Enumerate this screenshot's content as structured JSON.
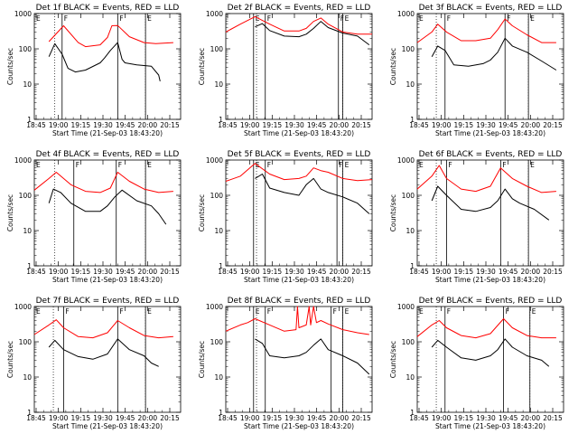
{
  "chart_data": [
    {
      "type": "line",
      "title": "Det 1f BLACK = Events, RED = LLD",
      "xlabel": "Start Time (21-Sep-03 18:43:20)",
      "ylabel": "Counts/sec",
      "x_ticks": [
        "18:45",
        "19:00",
        "19:15",
        "19:30",
        "19:45",
        "20:00",
        "20:15"
      ],
      "y_ticks": [
        "1",
        "10",
        "100",
        "1000"
      ],
      "ylim": [
        1,
        1000
      ],
      "yscale": "log",
      "flags": [
        {
          "label": "E",
          "t": 0
        },
        {
          "label": "F",
          "t": 0.19
        },
        {
          "label": "F",
          "t": 0.57
        },
        {
          "label": "E",
          "t": 0.76
        }
      ],
      "dotted": [
        0.14,
        0.76
      ],
      "series": [
        {
          "name": "LLD",
          "color": "#ff0000",
          "x": [
            0.1,
            0.2,
            0.3,
            0.35,
            0.45,
            0.5,
            0.53,
            0.57,
            0.65,
            0.75,
            0.83,
            0.95
          ],
          "y": [
            160,
            450,
            150,
            115,
            130,
            210,
            450,
            460,
            220,
            150,
            140,
            150
          ]
        },
        {
          "name": "Events",
          "color": "#000000",
          "x": [
            0.1,
            0.14,
            0.19,
            0.23,
            0.28,
            0.35,
            0.45,
            0.48,
            0.52,
            0.57,
            0.6,
            0.62,
            0.7,
            0.8,
            0.85,
            0.86
          ],
          "y": [
            60,
            140,
            70,
            28,
            22,
            25,
            40,
            55,
            90,
            150,
            50,
            40,
            35,
            32,
            18,
            12
          ]
        }
      ]
    },
    {
      "type": "line",
      "title": "Det 2f BLACK = Events, RED = LLD",
      "xlabel": "Start Time (21-Sep-03 18:43:20)",
      "ylabel": "Counts/sec",
      "x_ticks": [
        "18:45",
        "19:00",
        "19:15",
        "19:30",
        "19:45",
        "20:00",
        "20:15"
      ],
      "y_ticks": [
        "1",
        "10",
        "100",
        "1000"
      ],
      "ylim": [
        1,
        1000
      ],
      "yscale": "log",
      "flags": [
        {
          "label": "E",
          "t": 0.19
        },
        {
          "label": "F",
          "t": 0.27
        },
        {
          "label": "F",
          "t": 0.77
        },
        {
          "label": "E",
          "t": 0.8
        }
      ],
      "dotted": [
        0.21,
        0.8
      ],
      "series": [
        {
          "name": "LLD",
          "color": "#ff0000",
          "x": [
            0.0,
            0.1,
            0.2,
            0.3,
            0.4,
            0.5,
            0.55,
            0.6,
            0.65,
            0.7,
            0.8,
            0.9,
            1.0
          ],
          "y": [
            300,
            500,
            820,
            500,
            320,
            320,
            380,
            600,
            750,
            500,
            300,
            260,
            260
          ]
        },
        {
          "name": "Events",
          "color": "#000000",
          "x": [
            0.2,
            0.25,
            0.3,
            0.4,
            0.5,
            0.55,
            0.6,
            0.65,
            0.7,
            0.8,
            0.9,
            0.98
          ],
          "y": [
            420,
            520,
            330,
            230,
            220,
            260,
            380,
            600,
            400,
            280,
            230,
            130
          ]
        }
      ]
    },
    {
      "type": "line",
      "title": "Det 3f BLACK = Events, RED = LLD",
      "xlabel": "Start Time (21-Sep-03 18:43:20)",
      "ylabel": "Counts/sec",
      "x_ticks": [
        "18:45",
        "19:00",
        "19:15",
        "19:30",
        "19:45",
        "20:00",
        "20:15"
      ],
      "y_ticks": [
        "1",
        "10",
        "100",
        "1000"
      ],
      "ylim": [
        1,
        1000
      ],
      "yscale": "log",
      "flags": [
        {
          "label": "E",
          "t": 0
        },
        {
          "label": "F",
          "t": 0.19
        },
        {
          "label": "F",
          "t": 0.6
        },
        {
          "label": "E",
          "t": 0.76
        }
      ],
      "dotted": [
        0.13,
        0.76
      ],
      "series": [
        {
          "name": "LLD",
          "color": "#ff0000",
          "x": [
            0.0,
            0.1,
            0.14,
            0.2,
            0.3,
            0.4,
            0.5,
            0.55,
            0.6,
            0.65,
            0.75,
            0.85,
            0.95
          ],
          "y": [
            150,
            300,
            500,
            300,
            170,
            170,
            200,
            350,
            700,
            450,
            250,
            150,
            150
          ]
        },
        {
          "name": "Events",
          "color": "#000000",
          "x": [
            0.1,
            0.14,
            0.19,
            0.25,
            0.35,
            0.45,
            0.5,
            0.55,
            0.6,
            0.65,
            0.75,
            0.85,
            0.95
          ],
          "y": [
            60,
            120,
            90,
            35,
            32,
            38,
            48,
            80,
            200,
            120,
            80,
            45,
            25
          ]
        }
      ]
    },
    {
      "type": "line",
      "title": "Det 4f BLACK = Events, RED = LLD",
      "xlabel": "Start Time (21-Sep-03 18:43:20)",
      "ylabel": "Counts/sec",
      "x_ticks": [
        "18:45",
        "19:00",
        "19:15",
        "19:30",
        "19:45",
        "20:00",
        "20:15"
      ],
      "y_ticks": [
        "1",
        "10",
        "100",
        "1000"
      ],
      "ylim": [
        1,
        1000
      ],
      "yscale": "log",
      "flags": [
        {
          "label": "E",
          "t": 0
        },
        {
          "label": "F",
          "t": 0.27
        },
        {
          "label": "F",
          "t": 0.56
        },
        {
          "label": "E",
          "t": 0.76
        }
      ],
      "dotted": [
        0.14,
        0.76
      ],
      "series": [
        {
          "name": "LLD",
          "color": "#ff0000",
          "x": [
            0.0,
            0.1,
            0.15,
            0.25,
            0.35,
            0.45,
            0.52,
            0.57,
            0.65,
            0.75,
            0.85,
            0.95
          ],
          "y": [
            140,
            300,
            450,
            200,
            130,
            120,
            160,
            450,
            250,
            150,
            120,
            130
          ]
        },
        {
          "name": "Events",
          "color": "#000000",
          "x": [
            0.1,
            0.13,
            0.18,
            0.25,
            0.35,
            0.45,
            0.5,
            0.55,
            0.6,
            0.7,
            0.8,
            0.85,
            0.9
          ],
          "y": [
            60,
            150,
            120,
            60,
            35,
            35,
            50,
            90,
            140,
            70,
            50,
            30,
            15
          ]
        }
      ]
    },
    {
      "type": "line",
      "title": "Det 5f BLACK = Events, RED = LLD",
      "xlabel": "Start Time (21-Sep-03 18:43:20)",
      "ylabel": "Counts/sec",
      "x_ticks": [
        "18:45",
        "19:00",
        "19:15",
        "19:30",
        "19:45",
        "20:00",
        "20:15"
      ],
      "y_ticks": [
        "1",
        "10",
        "100",
        "1000"
      ],
      "ylim": [
        1,
        1000
      ],
      "yscale": "log",
      "flags": [
        {
          "label": "E",
          "t": 0.19
        },
        {
          "label": "F",
          "t": 0.27
        },
        {
          "label": "F",
          "t": 0.76
        },
        {
          "label": "E",
          "t": 0.8
        }
      ],
      "dotted": [
        0.21,
        0.8
      ],
      "series": [
        {
          "name": "LLD",
          "color": "#ff0000",
          "x": [
            0.0,
            0.1,
            0.2,
            0.3,
            0.4,
            0.5,
            0.55,
            0.6,
            0.65,
            0.7,
            0.8,
            0.9,
            1.0
          ],
          "y": [
            250,
            350,
            800,
            400,
            280,
            300,
            350,
            600,
            500,
            450,
            300,
            260,
            280
          ]
        },
        {
          "name": "Events",
          "color": "#000000",
          "x": [
            0.2,
            0.25,
            0.3,
            0.4,
            0.5,
            0.55,
            0.6,
            0.65,
            0.7,
            0.8,
            0.9,
            0.98
          ],
          "y": [
            300,
            400,
            160,
            120,
            100,
            200,
            300,
            150,
            120,
            90,
            60,
            30
          ]
        }
      ]
    },
    {
      "type": "line",
      "title": "Det 6f BLACK = Events, RED = LLD",
      "xlabel": "Start Time (21-Sep-03 18:43:20)",
      "ylabel": "Counts/sec",
      "x_ticks": [
        "18:45",
        "19:00",
        "19:15",
        "19:30",
        "19:45",
        "20:00",
        "20:15"
      ],
      "y_ticks": [
        "1",
        "10",
        "100",
        "1000"
      ],
      "ylim": [
        1,
        1000
      ],
      "yscale": "log",
      "flags": [
        {
          "label": "E",
          "t": 0
        },
        {
          "label": "F",
          "t": 0.2
        },
        {
          "label": "F",
          "t": 0.57
        },
        {
          "label": "E",
          "t": 0.76
        }
      ],
      "dotted": [
        0.13,
        0.76
      ],
      "series": [
        {
          "name": "LLD",
          "color": "#ff0000",
          "x": [
            0.0,
            0.1,
            0.15,
            0.2,
            0.3,
            0.4,
            0.5,
            0.57,
            0.65,
            0.75,
            0.85,
            0.95
          ],
          "y": [
            150,
            350,
            700,
            300,
            150,
            130,
            180,
            600,
            300,
            180,
            120,
            130
          ]
        },
        {
          "name": "Events",
          "color": "#000000",
          "x": [
            0.1,
            0.14,
            0.2,
            0.3,
            0.4,
            0.5,
            0.55,
            0.6,
            0.65,
            0.7,
            0.8,
            0.9
          ],
          "y": [
            70,
            180,
            100,
            40,
            35,
            45,
            70,
            150,
            80,
            60,
            40,
            20
          ]
        }
      ]
    },
    {
      "type": "line",
      "title": "Det 7f BLACK = Events, RED = LLD",
      "xlabel": "Start Time (21-Sep-03 18:43:20)",
      "ylabel": "Counts/sec",
      "x_ticks": [
        "18:45",
        "19:00",
        "19:15",
        "19:30",
        "19:45",
        "20:00",
        "20:15"
      ],
      "y_ticks": [
        "1",
        "10",
        "100",
        "1000"
      ],
      "ylim": [
        1,
        1000
      ],
      "yscale": "log",
      "flags": [
        {
          "label": "E",
          "t": 0
        },
        {
          "label": "F",
          "t": 0.2
        },
        {
          "label": "F",
          "t": 0.57
        },
        {
          "label": "E",
          "t": 0.76
        }
      ],
      "dotted": [
        0.13,
        0.76
      ],
      "series": [
        {
          "name": "LLD",
          "color": "#ff0000",
          "x": [
            0.0,
            0.1,
            0.15,
            0.2,
            0.3,
            0.4,
            0.5,
            0.57,
            0.65,
            0.75,
            0.85,
            0.95
          ],
          "y": [
            160,
            300,
            420,
            250,
            140,
            130,
            180,
            400,
            250,
            150,
            130,
            140
          ]
        },
        {
          "name": "Events",
          "color": "#000000",
          "x": [
            0.1,
            0.14,
            0.2,
            0.3,
            0.4,
            0.5,
            0.57,
            0.65,
            0.75,
            0.8,
            0.85
          ],
          "y": [
            70,
            110,
            60,
            38,
            32,
            45,
            120,
            60,
            40,
            25,
            20
          ]
        }
      ]
    },
    {
      "type": "line",
      "title": "Det 8f BLACK = Events, RED = LLD",
      "xlabel": "Start Time (21-Sep-03 18:43:20)",
      "ylabel": "Counts/sec",
      "x_ticks": [
        "18:45",
        "19:00",
        "19:15",
        "19:30",
        "19:45",
        "20:00",
        "20:15"
      ],
      "y_ticks": [
        "1",
        "10",
        "100",
        "1000"
      ],
      "ylim": [
        1,
        1000
      ],
      "yscale": "log",
      "flags": [
        {
          "label": "E",
          "t": 0.19
        },
        {
          "label": "F",
          "t": 0.27
        },
        {
          "label": "F",
          "t": 0.72
        },
        {
          "label": "E",
          "t": 0.8
        }
      ],
      "dotted": [
        0.21,
        0.8
      ],
      "series": [
        {
          "name": "LLD",
          "color": "#ff0000",
          "x": [
            0.0,
            0.1,
            0.15,
            0.2,
            0.3,
            0.4,
            0.48,
            0.49,
            0.5,
            0.55,
            0.57,
            0.58,
            0.6,
            0.62,
            0.65,
            0.7,
            0.8,
            0.9,
            0.98
          ],
          "y": [
            200,
            300,
            350,
            450,
            300,
            200,
            220,
            1000,
            250,
            300,
            1000,
            300,
            1000,
            350,
            400,
            320,
            220,
            180,
            160
          ]
        },
        {
          "name": "Events",
          "color": "#000000",
          "x": [
            0.2,
            0.25,
            0.3,
            0.4,
            0.5,
            0.55,
            0.6,
            0.65,
            0.7,
            0.8,
            0.9,
            0.98
          ],
          "y": [
            120,
            90,
            40,
            35,
            40,
            50,
            80,
            120,
            60,
            40,
            25,
            12
          ]
        }
      ]
    },
    {
      "type": "line",
      "title": "Det 9f BLACK = Events, RED = LLD",
      "xlabel": "Start Time (21-Sep-03 18:43:20)",
      "ylabel": "Counts/sec",
      "x_ticks": [
        "18:45",
        "19:00",
        "19:15",
        "19:30",
        "19:45",
        "20:00",
        "20:15"
      ],
      "y_ticks": [
        "1",
        "10",
        "100",
        "1000"
      ],
      "ylim": [
        1,
        1000
      ],
      "yscale": "log",
      "flags": [
        {
          "label": "E",
          "t": 0
        },
        {
          "label": "F",
          "t": 0.19
        },
        {
          "label": "F",
          "t": 0.59
        },
        {
          "label": "E",
          "t": 0.77
        }
      ],
      "dotted": [
        0.13,
        0.77
      ],
      "series": [
        {
          "name": "LLD",
          "color": "#ff0000",
          "x": [
            0.0,
            0.1,
            0.15,
            0.2,
            0.3,
            0.4,
            0.5,
            0.59,
            0.65,
            0.75,
            0.85,
            0.95
          ],
          "y": [
            140,
            300,
            400,
            250,
            150,
            130,
            170,
            450,
            250,
            150,
            130,
            130
          ]
        },
        {
          "name": "Events",
          "color": "#000000",
          "x": [
            0.1,
            0.14,
            0.2,
            0.3,
            0.4,
            0.5,
            0.55,
            0.6,
            0.65,
            0.75,
            0.85,
            0.9
          ],
          "y": [
            70,
            110,
            70,
            35,
            30,
            40,
            60,
            120,
            70,
            40,
            30,
            20
          ]
        }
      ]
    }
  ]
}
